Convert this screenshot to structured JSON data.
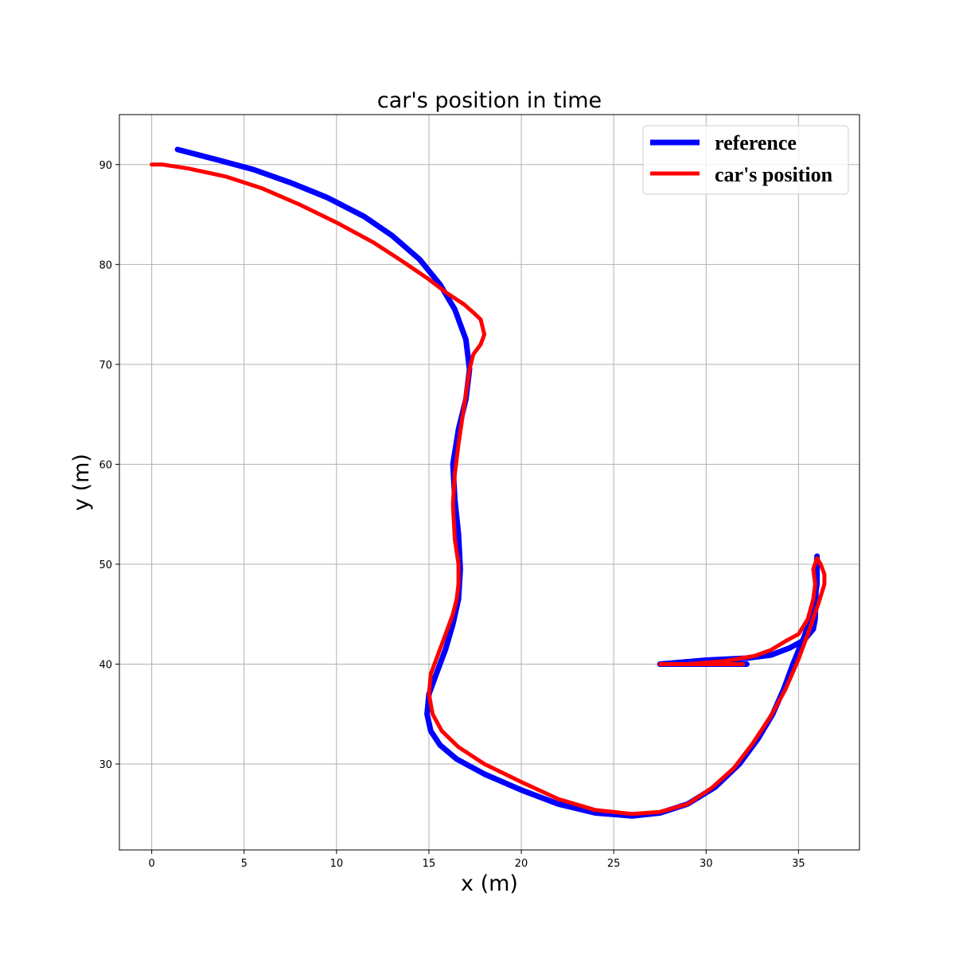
{
  "chart_data": {
    "type": "line",
    "title": "car's position in time",
    "xlabel": "x (m)",
    "ylabel": "y (m)",
    "xlim": [
      -1.75,
      38.3
    ],
    "ylim": [
      21.4,
      95.0
    ],
    "xticks": [
      0,
      5,
      10,
      15,
      20,
      25,
      30,
      35
    ],
    "yticks": [
      30,
      40,
      50,
      60,
      70,
      80,
      90
    ],
    "grid": true,
    "legend_position": "top-right",
    "series": [
      {
        "name": "reference",
        "color": "#0000ff",
        "x": [
          1.4,
          3.5,
          5.5,
          7.5,
          9.5,
          11.5,
          13.0,
          14.5,
          15.6,
          16.4,
          17.0,
          17.2,
          17.0,
          16.6,
          16.3,
          16.4,
          16.6,
          16.7,
          16.6,
          16.3,
          15.9,
          15.4,
          15.0,
          14.9,
          15.1,
          15.6,
          16.5,
          18.0,
          20.0,
          22.0,
          24.0,
          26.0,
          27.5,
          29.0,
          30.5,
          31.8,
          32.8,
          33.6,
          34.2,
          34.7,
          35.3,
          35.8,
          36.0,
          36.0,
          35.9,
          35.8,
          35.3,
          34.5,
          33.5,
          32.2,
          30.0,
          27.5,
          30.0,
          32.2
        ],
        "y": [
          91.5,
          90.5,
          89.5,
          88.2,
          86.7,
          84.8,
          82.9,
          80.5,
          78.0,
          75.5,
          72.5,
          69.5,
          66.5,
          63.5,
          60.0,
          56.5,
          53.0,
          49.5,
          46.5,
          44.0,
          41.5,
          39.0,
          37.0,
          35.0,
          33.3,
          31.9,
          30.5,
          29.0,
          27.4,
          26.0,
          25.1,
          24.8,
          25.1,
          26.0,
          27.7,
          30.0,
          32.5,
          35.0,
          37.5,
          40.0,
          42.7,
          45.5,
          48.0,
          50.8,
          44.5,
          43.5,
          42.4,
          41.6,
          40.9,
          40.6,
          40.4,
          40.0,
          40.0,
          40.0
        ]
      },
      {
        "name": "car's position",
        "color": "#ff0000",
        "x": [
          0.0,
          0.6,
          2.0,
          4.0,
          6.0,
          8.0,
          10.0,
          12.0,
          13.5,
          15.0,
          16.0,
          16.9,
          17.4,
          17.8,
          18.0,
          17.8,
          17.4,
          17.2,
          17.0,
          16.8,
          16.6,
          16.4,
          16.3,
          16.4,
          16.6,
          16.6,
          16.5,
          16.3,
          15.9,
          15.5,
          15.1,
          15.0,
          15.2,
          15.7,
          16.6,
          18.0,
          20.0,
          22.0,
          24.0,
          26.0,
          27.5,
          29.0,
          30.3,
          31.5,
          32.5,
          33.5,
          34.3,
          35.0,
          35.6,
          36.1,
          36.4,
          36.4,
          36.2,
          36.0,
          35.8,
          35.9,
          35.8,
          35.5,
          35.0,
          34.3,
          33.5,
          32.6,
          31.0,
          29.0,
          27.5,
          30.0,
          32.0
        ],
        "y": [
          90.0,
          90.0,
          89.6,
          88.8,
          87.6,
          86.0,
          84.2,
          82.2,
          80.4,
          78.5,
          77.1,
          76.0,
          75.2,
          74.5,
          73.0,
          72.0,
          71.0,
          69.5,
          67.0,
          64.5,
          62.0,
          59.0,
          56.0,
          52.5,
          50.0,
          48.0,
          46.5,
          45.0,
          43.0,
          41.0,
          39.0,
          37.0,
          35.0,
          33.3,
          31.7,
          30.0,
          28.2,
          26.5,
          25.4,
          25.0,
          25.2,
          26.0,
          27.6,
          29.6,
          32.0,
          34.8,
          37.5,
          40.5,
          43.5,
          46.2,
          48.0,
          49.0,
          50.0,
          50.6,
          49.5,
          48.0,
          46.5,
          44.5,
          43.0,
          42.3,
          41.4,
          40.8,
          40.3,
          40.0,
          40.0,
          40.0,
          40.0
        ]
      }
    ]
  }
}
